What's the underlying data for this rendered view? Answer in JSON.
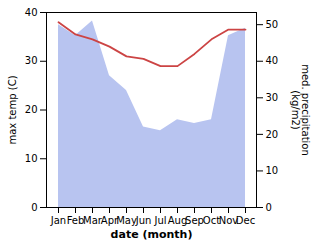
{
  "chart_data": {
    "type": "line",
    "categories": [
      "Jan",
      "Feb",
      "Mar",
      "Apr",
      "May",
      "Jun",
      "Jul",
      "Aug",
      "Sep",
      "Oct",
      "Nov",
      "Dec"
    ],
    "series": [
      {
        "type": "area",
        "axis": "y2",
        "color": "#b8c4f0",
        "values": [
          50,
          47,
          51,
          36,
          32,
          22,
          21,
          24,
          23,
          24,
          47,
          49
        ]
      },
      {
        "type": "line",
        "color": "#cc4444",
        "values": [
          38.0,
          35.5,
          34.5,
          33.0,
          31.0,
          30.5,
          29.0,
          29.0,
          31.5,
          34.5,
          36.5,
          36.5
        ]
      }
    ],
    "xlabel": "date (month)",
    "ylabel": "max temp (C)",
    "y2label": "med. precipitation\n(kg/m2)",
    "ylim": [
      0,
      40
    ],
    "yticks": [
      0,
      10,
      20,
      30,
      40
    ],
    "y2lim": [
      0,
      53.33
    ],
    "y2ticks": [
      0,
      10,
      20,
      30,
      40,
      50
    ],
    "grid": false
  }
}
